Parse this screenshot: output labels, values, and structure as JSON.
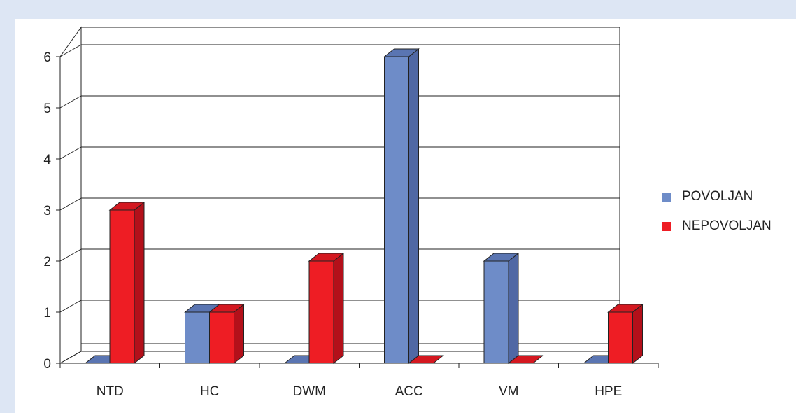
{
  "chart_data": {
    "type": "bar",
    "categories": [
      "NTD",
      "HC",
      "DWM",
      "ACC",
      "VM",
      "HPE"
    ],
    "series": [
      {
        "name": "POVOLJAN",
        "values": [
          0,
          1,
          0,
          6,
          2,
          0
        ],
        "color": "#6e8cc8",
        "side": "#5068a4",
        "top": "#5a75b2"
      },
      {
        "name": "NEPOVOLJAN",
        "values": [
          3,
          1,
          2,
          0,
          0,
          1
        ],
        "color": "#ee1d24",
        "side": "#b3101a",
        "top": "#d41820"
      }
    ],
    "yticks": [
      0,
      1,
      2,
      3,
      4,
      5,
      6
    ],
    "ylim": [
      0,
      6
    ],
    "grid": true,
    "legend_position": "right",
    "three_d": true
  }
}
